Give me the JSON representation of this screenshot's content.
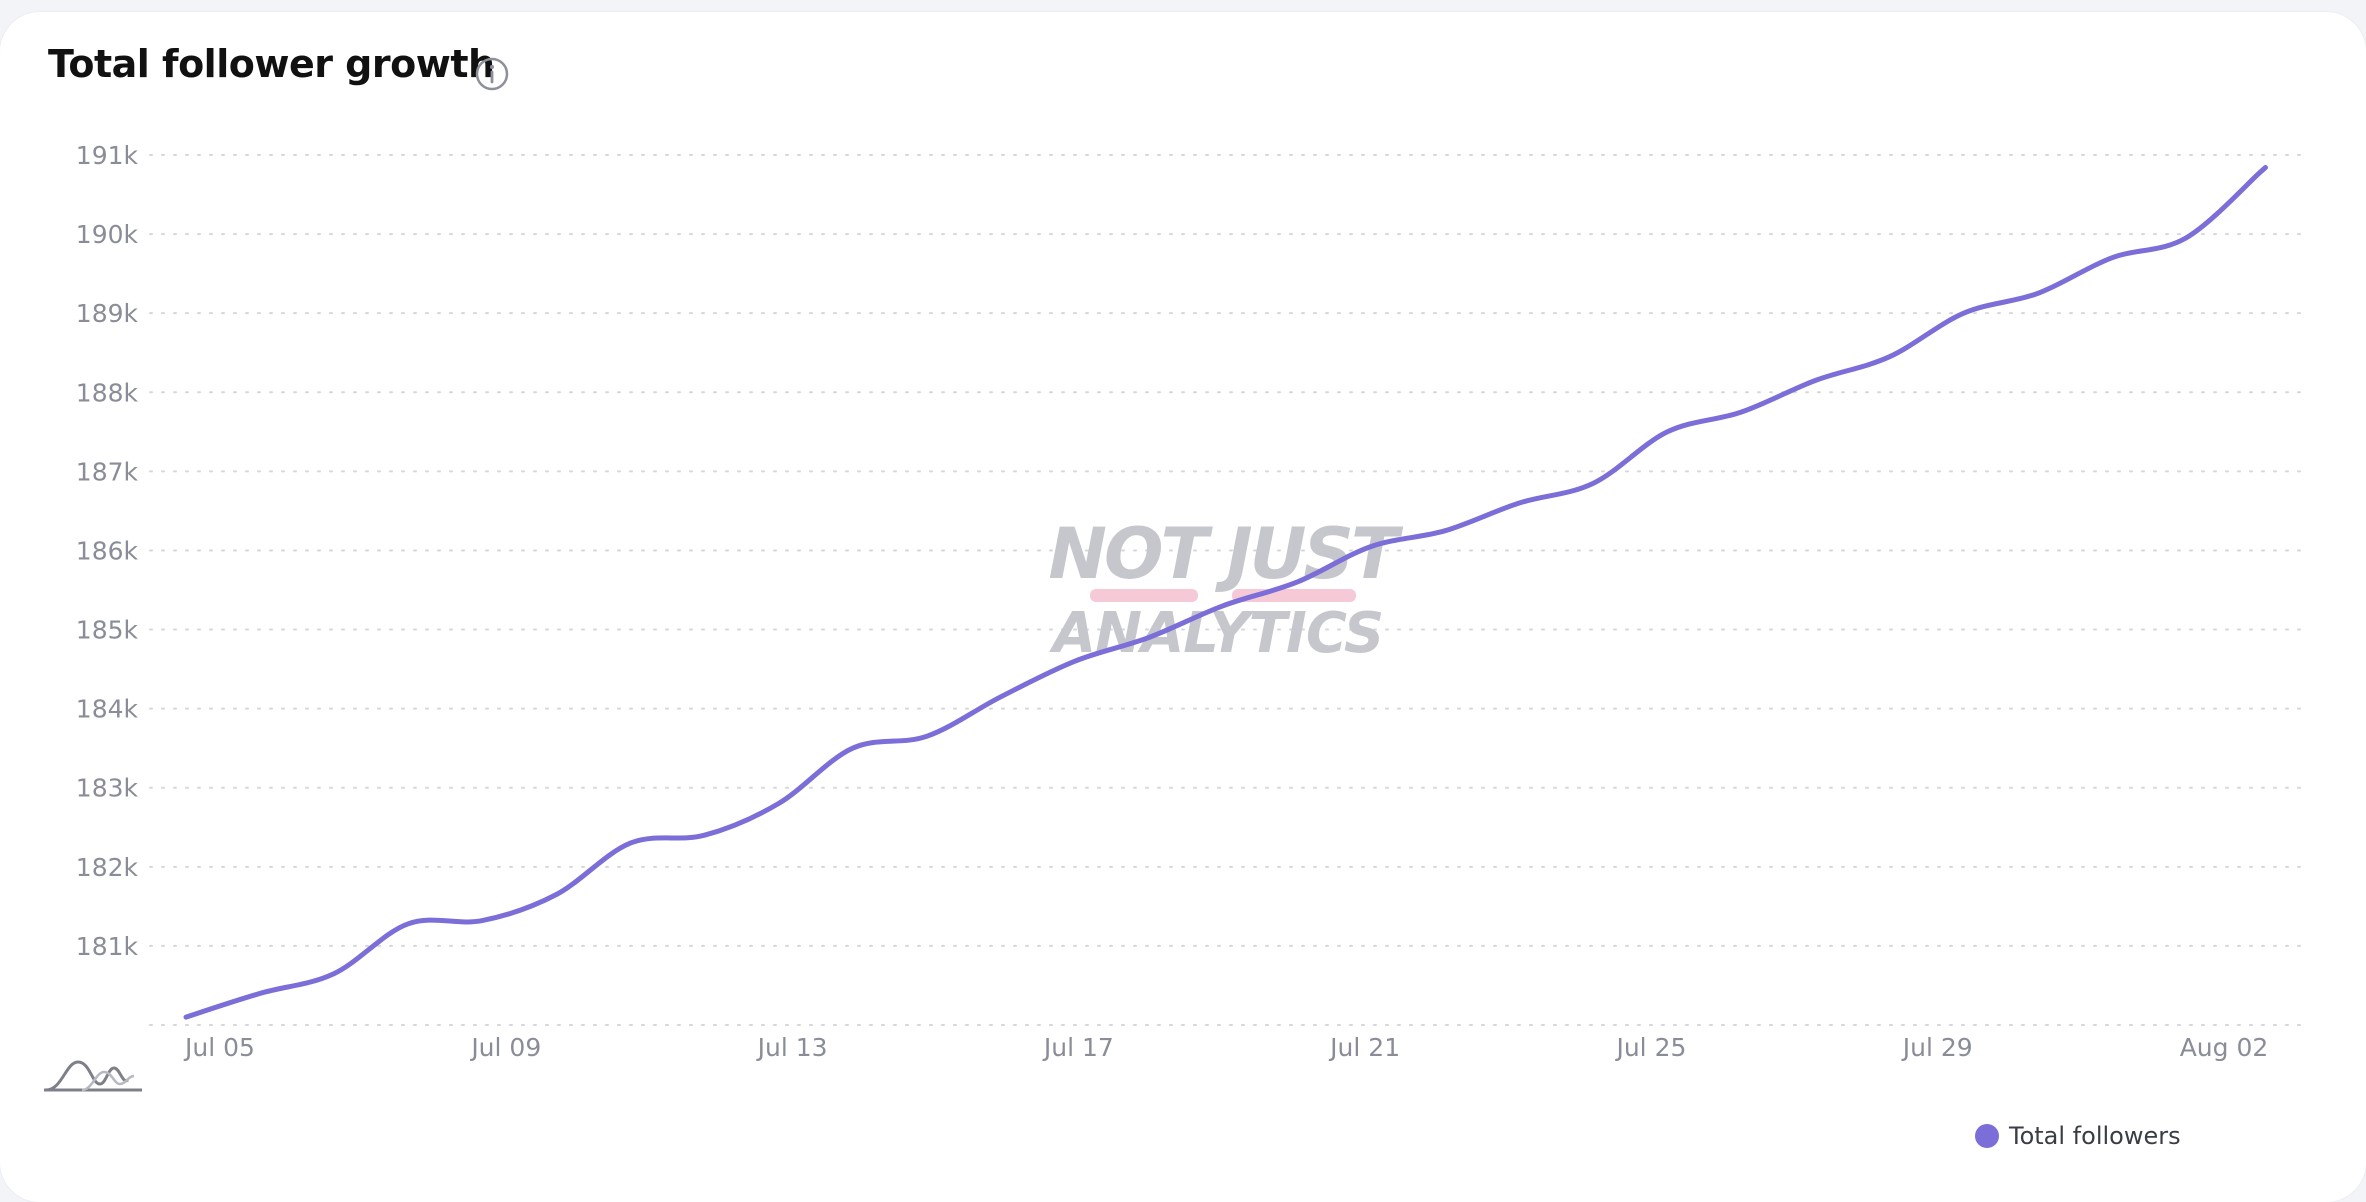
{
  "header": {
    "title": "Total follower growth",
    "info_icon": "info-circle-icon"
  },
  "toolbar": {
    "chart_style_icon": "wave-chart-icon"
  },
  "watermark": {
    "line1": "NOT JUST",
    "line2": "ANALYTICS"
  },
  "colors": {
    "series": "#7b6ed8",
    "grid": "#d5d7dd",
    "watermark_text": "#c6c7cc",
    "watermark_accent": "#f6c9d6"
  },
  "chart_data": {
    "type": "line",
    "title": "Total follower growth",
    "xlabel": "",
    "ylabel": "",
    "ylim": [
      180000,
      191000
    ],
    "yticks": [
      181000,
      182000,
      183000,
      184000,
      185000,
      186000,
      187000,
      188000,
      189000,
      190000,
      191000
    ],
    "ytick_labels": [
      "181k",
      "182k",
      "183k",
      "184k",
      "185k",
      "186k",
      "187k",
      "188k",
      "189k",
      "190k",
      "191k"
    ],
    "xlim": [
      "2024-07-05",
      "2024-08-02"
    ],
    "xtick_labels": [
      "Jul 05",
      "Jul 09",
      "Jul 13",
      "Jul 17",
      "Jul 21",
      "Jul 25",
      "Jul 29",
      "Aug 02"
    ],
    "grid": true,
    "legend_position": "bottom-right",
    "series": [
      {
        "name": "Total followers",
        "x": [
          "Jul 05",
          "Jul 06",
          "Jul 07",
          "Jul 08",
          "Jul 09",
          "Jul 10",
          "Jul 11",
          "Jul 12",
          "Jul 13",
          "Jul 14",
          "Jul 15",
          "Jul 16",
          "Jul 17",
          "Jul 18",
          "Jul 19",
          "Jul 20",
          "Jul 21",
          "Jul 22",
          "Jul 23",
          "Jul 24",
          "Jul 25",
          "Jul 26",
          "Jul 27",
          "Jul 28",
          "Jul 29",
          "Jul 30",
          "Jul 31",
          "Aug 01",
          "Aug 02"
        ],
        "values": [
          180100,
          180400,
          180650,
          181280,
          181320,
          181650,
          182300,
          182400,
          182800,
          183500,
          183650,
          184150,
          184600,
          184900,
          185300,
          185600,
          186050,
          186250,
          186600,
          186850,
          187500,
          187750,
          188150,
          188450,
          189000,
          189250,
          189700,
          189950,
          190780
        ]
      }
    ]
  }
}
